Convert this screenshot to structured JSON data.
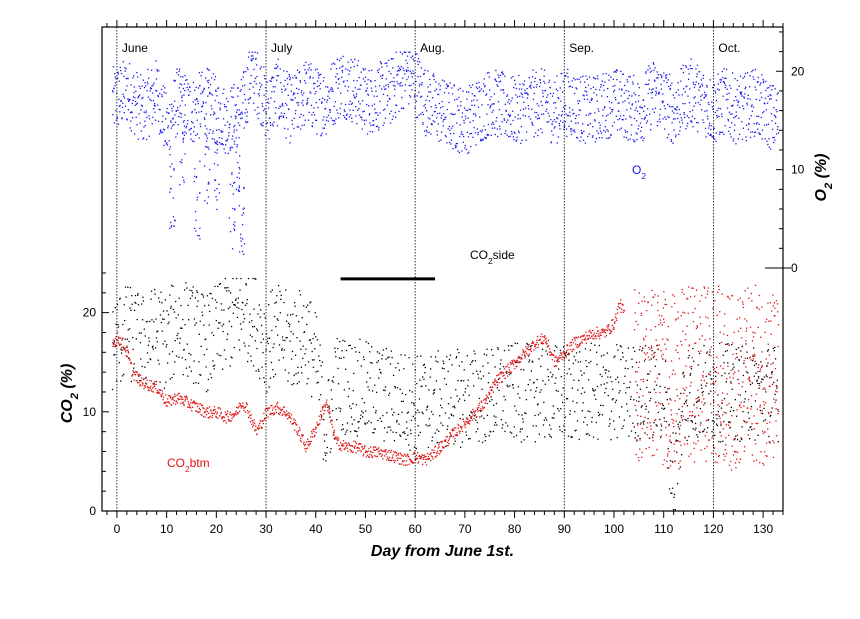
{
  "chart_data": {
    "type": "scatter",
    "xlabel": "Day  from  June  1st.",
    "xlim": [
      -3,
      134
    ],
    "x_ticks": [
      0,
      10,
      20,
      30,
      40,
      50,
      60,
      70,
      80,
      90,
      100,
      110,
      120,
      130
    ],
    "x_minor_step": 2,
    "month_boundaries": [
      0,
      30,
      60,
      90,
      120
    ],
    "month_labels": [
      "June",
      "July",
      "Aug.",
      "Sep.",
      "Oct."
    ],
    "co2_axis": {
      "ylabel_main": "CO",
      "ylabel_sub": "2",
      "ylabel_tail": " (%)",
      "ylim": [
        0,
        24.5
      ],
      "ticks": [
        0,
        10,
        20
      ],
      "grid": false
    },
    "o2_axis": {
      "ylabel_main": "O",
      "ylabel_sub": "2",
      "ylabel_tail": " (%)",
      "ylim": [
        0,
        24.5
      ],
      "ticks": [
        0,
        10,
        20
      ],
      "grid": false
    },
    "series": [
      {
        "name_main": "O",
        "name_sub": "2",
        "name_tail": "",
        "color": "#1a1aee",
        "axis": "o2",
        "profile": [
          [
            -1,
            17
          ],
          [
            2,
            18
          ],
          [
            5,
            16
          ],
          [
            8,
            18
          ],
          [
            10,
            14
          ],
          [
            12,
            17
          ],
          [
            15,
            16
          ],
          [
            18,
            17
          ],
          [
            20,
            16
          ],
          [
            22,
            15
          ],
          [
            25,
            16
          ],
          [
            27,
            20
          ],
          [
            29,
            18
          ],
          [
            30,
            16
          ],
          [
            32,
            18
          ],
          [
            35,
            16
          ],
          [
            38,
            18
          ],
          [
            40,
            17
          ],
          [
            42,
            17
          ],
          [
            45,
            19
          ],
          [
            48,
            18
          ],
          [
            50,
            17
          ],
          [
            55,
            18
          ],
          [
            58,
            20
          ],
          [
            60,
            19
          ],
          [
            62,
            17
          ],
          [
            65,
            16
          ],
          [
            70,
            15
          ],
          [
            75,
            17
          ],
          [
            80,
            16
          ],
          [
            85,
            17
          ],
          [
            88,
            16
          ],
          [
            90,
            17
          ],
          [
            95,
            16
          ],
          [
            100,
            17
          ],
          [
            105,
            16
          ],
          [
            108,
            18
          ],
          [
            110,
            17
          ],
          [
            112,
            16
          ],
          [
            115,
            18
          ],
          [
            118,
            17
          ],
          [
            120,
            16
          ],
          [
            122,
            17
          ],
          [
            125,
            16
          ],
          [
            128,
            17
          ],
          [
            130,
            16
          ],
          [
            133,
            15
          ]
        ],
        "spread": 3.5,
        "outliers": [
          [
            11,
            4
          ],
          [
            13,
            8
          ],
          [
            16,
            3
          ],
          [
            18,
            6
          ],
          [
            20,
            5
          ],
          [
            23,
            2
          ],
          [
            24,
            7
          ],
          [
            25,
            1
          ]
        ]
      },
      {
        "name_main": "CO",
        "name_sub": "2",
        "name_tail": "side",
        "color": "#000000",
        "axis": "co2",
        "profile": [
          [
            -1,
            17
          ],
          [
            2,
            18
          ],
          [
            5,
            17
          ],
          [
            8,
            18
          ],
          [
            10,
            17
          ],
          [
            12,
            19
          ],
          [
            15,
            18
          ],
          [
            18,
            17
          ],
          [
            20,
            18
          ],
          [
            22,
            19
          ],
          [
            25,
            20
          ],
          [
            27,
            20
          ],
          [
            29,
            18
          ],
          [
            30,
            17
          ],
          [
            32,
            18
          ],
          [
            35,
            17
          ],
          [
            38,
            18
          ],
          [
            40,
            15
          ],
          [
            42,
            8
          ],
          [
            44,
            13
          ],
          [
            60,
            11
          ],
          [
            80,
            12
          ],
          [
            90,
            12
          ],
          [
            100,
            12
          ],
          [
            110,
            12
          ],
          [
            112,
            3
          ],
          [
            114,
            12
          ],
          [
            120,
            12
          ],
          [
            125,
            12
          ],
          [
            130,
            12
          ],
          [
            133,
            12
          ]
        ],
        "spread": 5,
        "ceiling_line": [
          45,
          64,
          23.4
        ]
      },
      {
        "name_main": "CO",
        "name_sub": "2",
        "name_tail": "btm",
        "color": "#dd1111",
        "axis": "co2",
        "profile": [
          [
            -1,
            17
          ],
          [
            0,
            17.5
          ],
          [
            1,
            17
          ],
          [
            2,
            16
          ],
          [
            3,
            14
          ],
          [
            5,
            13
          ],
          [
            8,
            12.5
          ],
          [
            10,
            11
          ],
          [
            12,
            11.5
          ],
          [
            14,
            11
          ],
          [
            16,
            10.5
          ],
          [
            18,
            10
          ],
          [
            20,
            10
          ],
          [
            22,
            9.5
          ],
          [
            24,
            10
          ],
          [
            25,
            11
          ],
          [
            26,
            10.5
          ],
          [
            28,
            8
          ],
          [
            30,
            10
          ],
          [
            32,
            10.5
          ],
          [
            34,
            10
          ],
          [
            36,
            8.5
          ],
          [
            38,
            6.5
          ],
          [
            40,
            8.5
          ],
          [
            42,
            11
          ],
          [
            44,
            7
          ],
          [
            46,
            6.5
          ],
          [
            48,
            6.5
          ],
          [
            50,
            6
          ],
          [
            52,
            6
          ],
          [
            54,
            5.8
          ],
          [
            56,
            5.5
          ],
          [
            58,
            5.2
          ],
          [
            60,
            5.5
          ],
          [
            62,
            5.2
          ],
          [
            64,
            6
          ],
          [
            66,
            7
          ],
          [
            68,
            8
          ],
          [
            70,
            9
          ],
          [
            72,
            10
          ],
          [
            74,
            11
          ],
          [
            76,
            13
          ],
          [
            78,
            14
          ],
          [
            80,
            15
          ],
          [
            82,
            16
          ],
          [
            84,
            17
          ],
          [
            86,
            17.5
          ],
          [
            88,
            15
          ],
          [
            90,
            16
          ],
          [
            92,
            17
          ],
          [
            94,
            17.5
          ],
          [
            96,
            18
          ],
          [
            98,
            18
          ],
          [
            100,
            19
          ],
          [
            101,
            21
          ],
          [
            102,
            20
          ]
        ],
        "spread": 0.6,
        "scatter_profile": [
          [
            104,
            14
          ],
          [
            108,
            14
          ],
          [
            112,
            13
          ],
          [
            116,
            14
          ],
          [
            120,
            14
          ],
          [
            124,
            13
          ],
          [
            128,
            14
          ],
          [
            133,
            13
          ]
        ],
        "scatter_spread": 9
      }
    ]
  }
}
